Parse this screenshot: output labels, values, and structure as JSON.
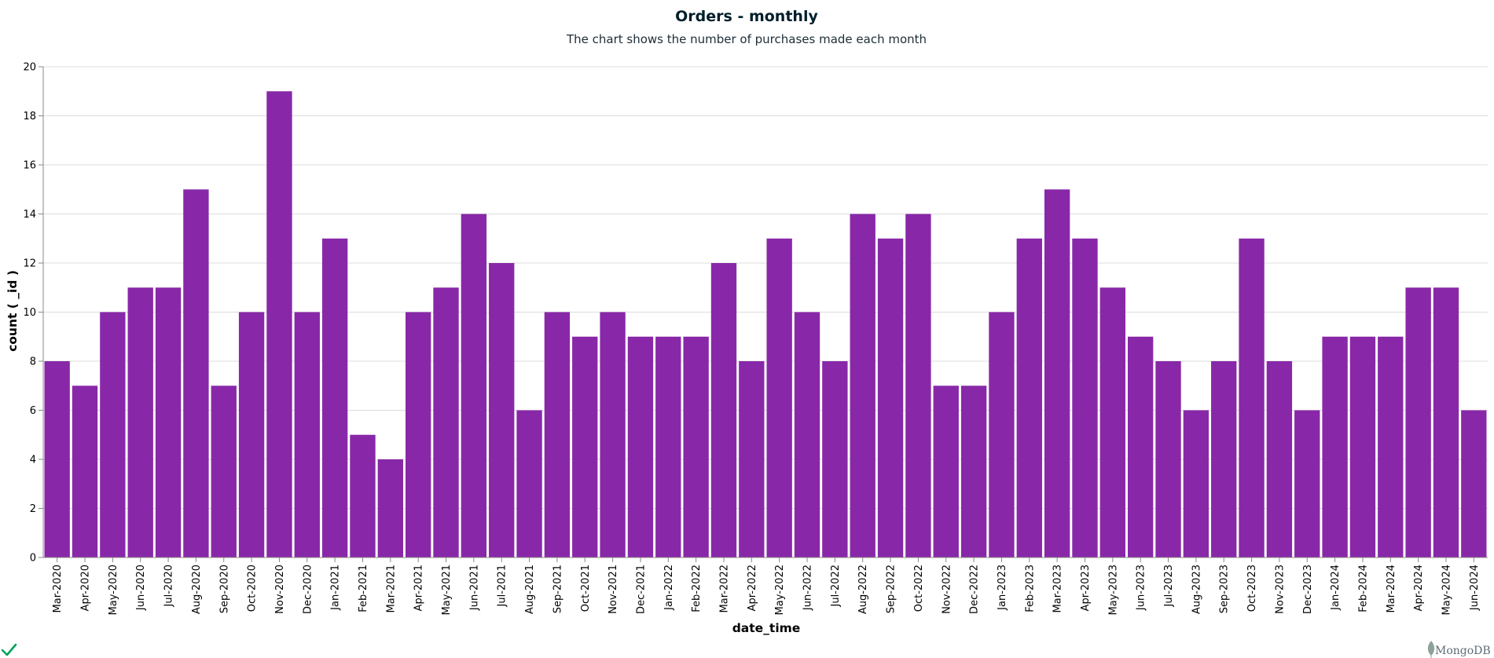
{
  "status_icon": "check-icon",
  "status_color": "#00a35c",
  "brand": {
    "name": "MongoDB",
    "icon": "leaf-icon"
  },
  "chart_data": {
    "type": "bar",
    "title": "Orders - monthly",
    "subtitle": "The chart shows the number of purchases made each month",
    "xlabel": "date_time",
    "ylabel": "count ( _id )",
    "ylim": [
      0,
      20
    ],
    "yticks": [
      0,
      2,
      4,
      6,
      8,
      10,
      12,
      14,
      16,
      18,
      20
    ],
    "grid": true,
    "bar_color": "#8828a8",
    "categories": [
      "Mar-2020",
      "Apr-2020",
      "May-2020",
      "Jun-2020",
      "Jul-2020",
      "Aug-2020",
      "Sep-2020",
      "Oct-2020",
      "Nov-2020",
      "Dec-2020",
      "Jan-2021",
      "Feb-2021",
      "Mar-2021",
      "Apr-2021",
      "May-2021",
      "Jun-2021",
      "Jul-2021",
      "Aug-2021",
      "Sep-2021",
      "Oct-2021",
      "Nov-2021",
      "Dec-2021",
      "Jan-2022",
      "Feb-2022",
      "Mar-2022",
      "Apr-2022",
      "May-2022",
      "Jun-2022",
      "Jul-2022",
      "Aug-2022",
      "Sep-2022",
      "Oct-2022",
      "Nov-2022",
      "Dec-2022",
      "Jan-2023",
      "Feb-2023",
      "Mar-2023",
      "Apr-2023",
      "May-2023",
      "Jun-2023",
      "Jul-2023",
      "Aug-2023",
      "Sep-2023",
      "Oct-2023",
      "Nov-2023",
      "Dec-2023",
      "Jan-2024",
      "Feb-2024",
      "Mar-2024",
      "Apr-2024",
      "May-2024",
      "Jun-2024"
    ],
    "values": [
      8,
      7,
      10,
      11,
      11,
      15,
      7,
      10,
      19,
      10,
      13,
      5,
      4,
      10,
      11,
      14,
      12,
      6,
      10,
      9,
      10,
      9,
      9,
      9,
      12,
      8,
      13,
      10,
      8,
      14,
      13,
      14,
      7,
      7,
      10,
      13,
      15,
      13,
      11,
      9,
      8,
      6,
      8,
      13,
      8,
      6,
      9,
      9,
      9,
      11,
      11,
      6
    ]
  }
}
